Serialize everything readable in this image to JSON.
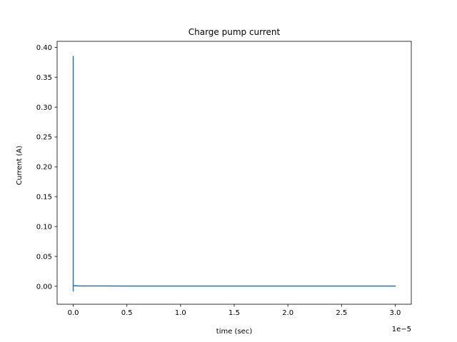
{
  "chart_data": {
    "type": "line",
    "title": "Charge pump current",
    "xlabel": "time (sec)",
    "ylabel": "Current (A)",
    "x_offset_text": "1e−5",
    "xlim": [
      -0.15,
      3.15
    ],
    "ylim": [
      -0.03,
      0.41
    ],
    "x_ticks": [
      0.0,
      0.5,
      1.0,
      1.5,
      2.0,
      2.5,
      3.0
    ],
    "x_tick_labels": [
      "0.0",
      "0.5",
      "1.0",
      "1.5",
      "2.0",
      "2.5",
      "3.0"
    ],
    "y_ticks": [
      0.0,
      0.05,
      0.1,
      0.15,
      0.2,
      0.25,
      0.3,
      0.35,
      0.4
    ],
    "y_tick_labels": [
      "0.00",
      "0.05",
      "0.10",
      "0.15",
      "0.20",
      "0.25",
      "0.30",
      "0.35",
      "0.40"
    ],
    "grid": false,
    "series": [
      {
        "color": "#1f77b4",
        "x": [
          0.0,
          0.0,
          0.0,
          0.0,
          0.005,
          0.01,
          0.05,
          0.1,
          0.3,
          0.6,
          1.0,
          1.5,
          2.0,
          2.5,
          3.0
        ],
        "y": [
          0.0,
          0.385,
          -0.008,
          0.002,
          0.001,
          0.001,
          0.0007,
          0.0006,
          0.0005,
          0.0004,
          0.0004,
          0.0004,
          0.0004,
          0.0004,
          0.0004
        ]
      }
    ]
  }
}
